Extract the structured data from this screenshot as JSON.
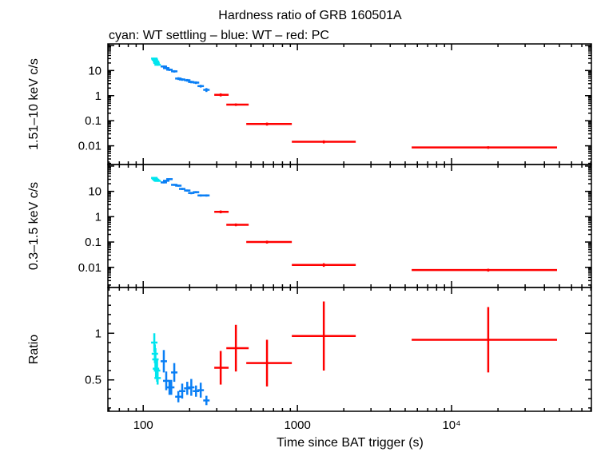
{
  "chart_data": {
    "type": "scatter",
    "title": "Hardness ratio of GRB 160501A",
    "subtitle": "cyan: WT settling – blue: WT – red: PC",
    "xlabel": "Time since BAT trigger (s)",
    "xscale": "log",
    "xlim": [
      59,
      80700
    ],
    "xticks": [
      {
        "v": 100,
        "label": "100"
      },
      {
        "v": 1000,
        "label": "1000"
      },
      {
        "v": 10000,
        "label": "10⁴"
      }
    ],
    "colors": {
      "cyan": "#00e5ee",
      "blue": "#0a7ff5",
      "red": "#ff0000"
    },
    "panels": [
      {
        "ylabel": "1.51–10 keV c/s",
        "yscale": "log",
        "ylim": [
          0.0018,
          115
        ],
        "yticks": [
          {
            "v": 10,
            "label": "10"
          },
          {
            "v": 1,
            "label": "1"
          },
          {
            "v": 0.1,
            "label": "0.1"
          },
          {
            "v": 0.01,
            "label": "0.01"
          }
        ],
        "series": [
          {
            "color": "cyan",
            "points": [
              [
                118,
                30,
                2
              ],
              [
                119,
                27,
                2
              ],
              [
                121,
                23,
                2
              ],
              [
                122,
                20,
                2
              ],
              [
                124,
                17,
                1.5
              ]
            ]
          },
          {
            "color": "blue",
            "points": [
              [
                136,
                14.5,
                1.5
              ],
              [
                141,
                12.5,
                1.3
              ],
              [
                148,
                10.8,
                1.2
              ],
              [
                159,
                9.3,
                1
              ],
              [
                169,
                4.8,
                0.6
              ],
              [
                179,
                4.4,
                0.5
              ],
              [
                193,
                4.1,
                0.5
              ],
              [
                205,
                3.5,
                0.4
              ],
              [
                220,
                3.3,
                0.4
              ],
              [
                236,
                2.4,
                0.3
              ],
              [
                257,
                1.7,
                0.3
              ]
            ]
          },
          {
            "color": "red",
            "points": [
              [
                318,
                1.08,
                0.15,
                289,
                358
              ],
              [
                399,
                0.44,
                0.05,
                346,
                483
              ],
              [
                635,
                0.074,
                0.01,
                466,
                920
              ],
              [
                1483,
                0.0145,
                0.002,
                920,
                2390
              ],
              [
                17290,
                0.0086,
                0.001,
                5510,
                48300
              ]
            ]
          }
        ]
      },
      {
        "ylabel": "0.3–1.5 keV c/s",
        "yscale": "log",
        "ylim": [
          0.0016,
          115
        ],
        "yticks": [
          {
            "v": 10,
            "label": "10"
          },
          {
            "v": 1,
            "label": "1"
          },
          {
            "v": 0.1,
            "label": "0.1"
          },
          {
            "v": 0.01,
            "label": "0.01"
          }
        ],
        "series": [
          {
            "color": "cyan",
            "points": [
              [
                118,
                34,
                2
              ],
              [
                119,
                31,
                2
              ],
              [
                121,
                29,
                2
              ],
              [
                122,
                27,
                2
              ],
              [
                124,
                26,
                2
              ]
            ]
          },
          {
            "color": "blue",
            "points": [
              [
                136,
                22.6,
                2
              ],
              [
                141,
                26.2,
                2
              ],
              [
                148,
                30.4,
                2
              ],
              [
                159,
                18.1,
                1.5
              ],
              [
                169,
                16.8,
                1.5
              ],
              [
                179,
                12.5,
                1.2
              ],
              [
                193,
                10.8,
                1
              ],
              [
                205,
                8.6,
                0.9
              ],
              [
                220,
                9.3,
                0.9
              ],
              [
                236,
                6.9,
                0.7
              ],
              [
                257,
                6.9,
                0.7
              ]
            ]
          },
          {
            "color": "red",
            "points": [
              [
                318,
                1.56,
                0.2,
                289,
                358
              ],
              [
                399,
                0.48,
                0.06,
                346,
                483
              ],
              [
                635,
                0.1,
                0.013,
                466,
                920
              ],
              [
                1483,
                0.0125,
                0.002,
                920,
                2390
              ],
              [
                17290,
                0.0078,
                0.001,
                5510,
                48300
              ]
            ]
          }
        ]
      },
      {
        "ylabel": "Ratio",
        "yscale": "linear",
        "ylim": [
          0.164,
          1.49
        ],
        "yticks": [
          {
            "v": 1,
            "label": "1"
          },
          {
            "v": 0.5,
            "label": "0.5"
          }
        ],
        "series": [
          {
            "color": "cyan",
            "points": [
              [
                118,
                0.9,
                0.1
              ],
              [
                119,
                0.78,
                0.1
              ],
              [
                120,
                0.72,
                0.12
              ],
              [
                121,
                0.62,
                0.1
              ],
              [
                123,
                0.6,
                0.12
              ],
              [
                124,
                0.52,
                0.07
              ]
            ]
          },
          {
            "color": "blue",
            "points": [
              [
                136,
                0.7,
                0.12
              ],
              [
                141,
                0.49,
                0.1
              ],
              [
                148,
                0.42,
                0.08
              ],
              [
                152,
                0.42,
                0.08
              ],
              [
                159,
                0.58,
                0.1
              ],
              [
                169,
                0.32,
                0.06
              ],
              [
                179,
                0.38,
                0.08
              ],
              [
                193,
                0.41,
                0.07
              ],
              [
                205,
                0.42,
                0.09
              ],
              [
                220,
                0.38,
                0.06
              ],
              [
                236,
                0.39,
                0.08
              ],
              [
                257,
                0.28,
                0.05
              ]
            ]
          },
          {
            "color": "red",
            "points": [
              [
                318,
                0.63,
                0.18,
                289,
                358
              ],
              [
                399,
                0.84,
                0.25,
                346,
                483
              ],
              [
                635,
                0.68,
                0.25,
                466,
                920
              ],
              [
                1483,
                0.97,
                0.37,
                920,
                2390
              ],
              [
                17290,
                0.93,
                0.35,
                5510,
                48300
              ]
            ]
          }
        ]
      }
    ]
  }
}
